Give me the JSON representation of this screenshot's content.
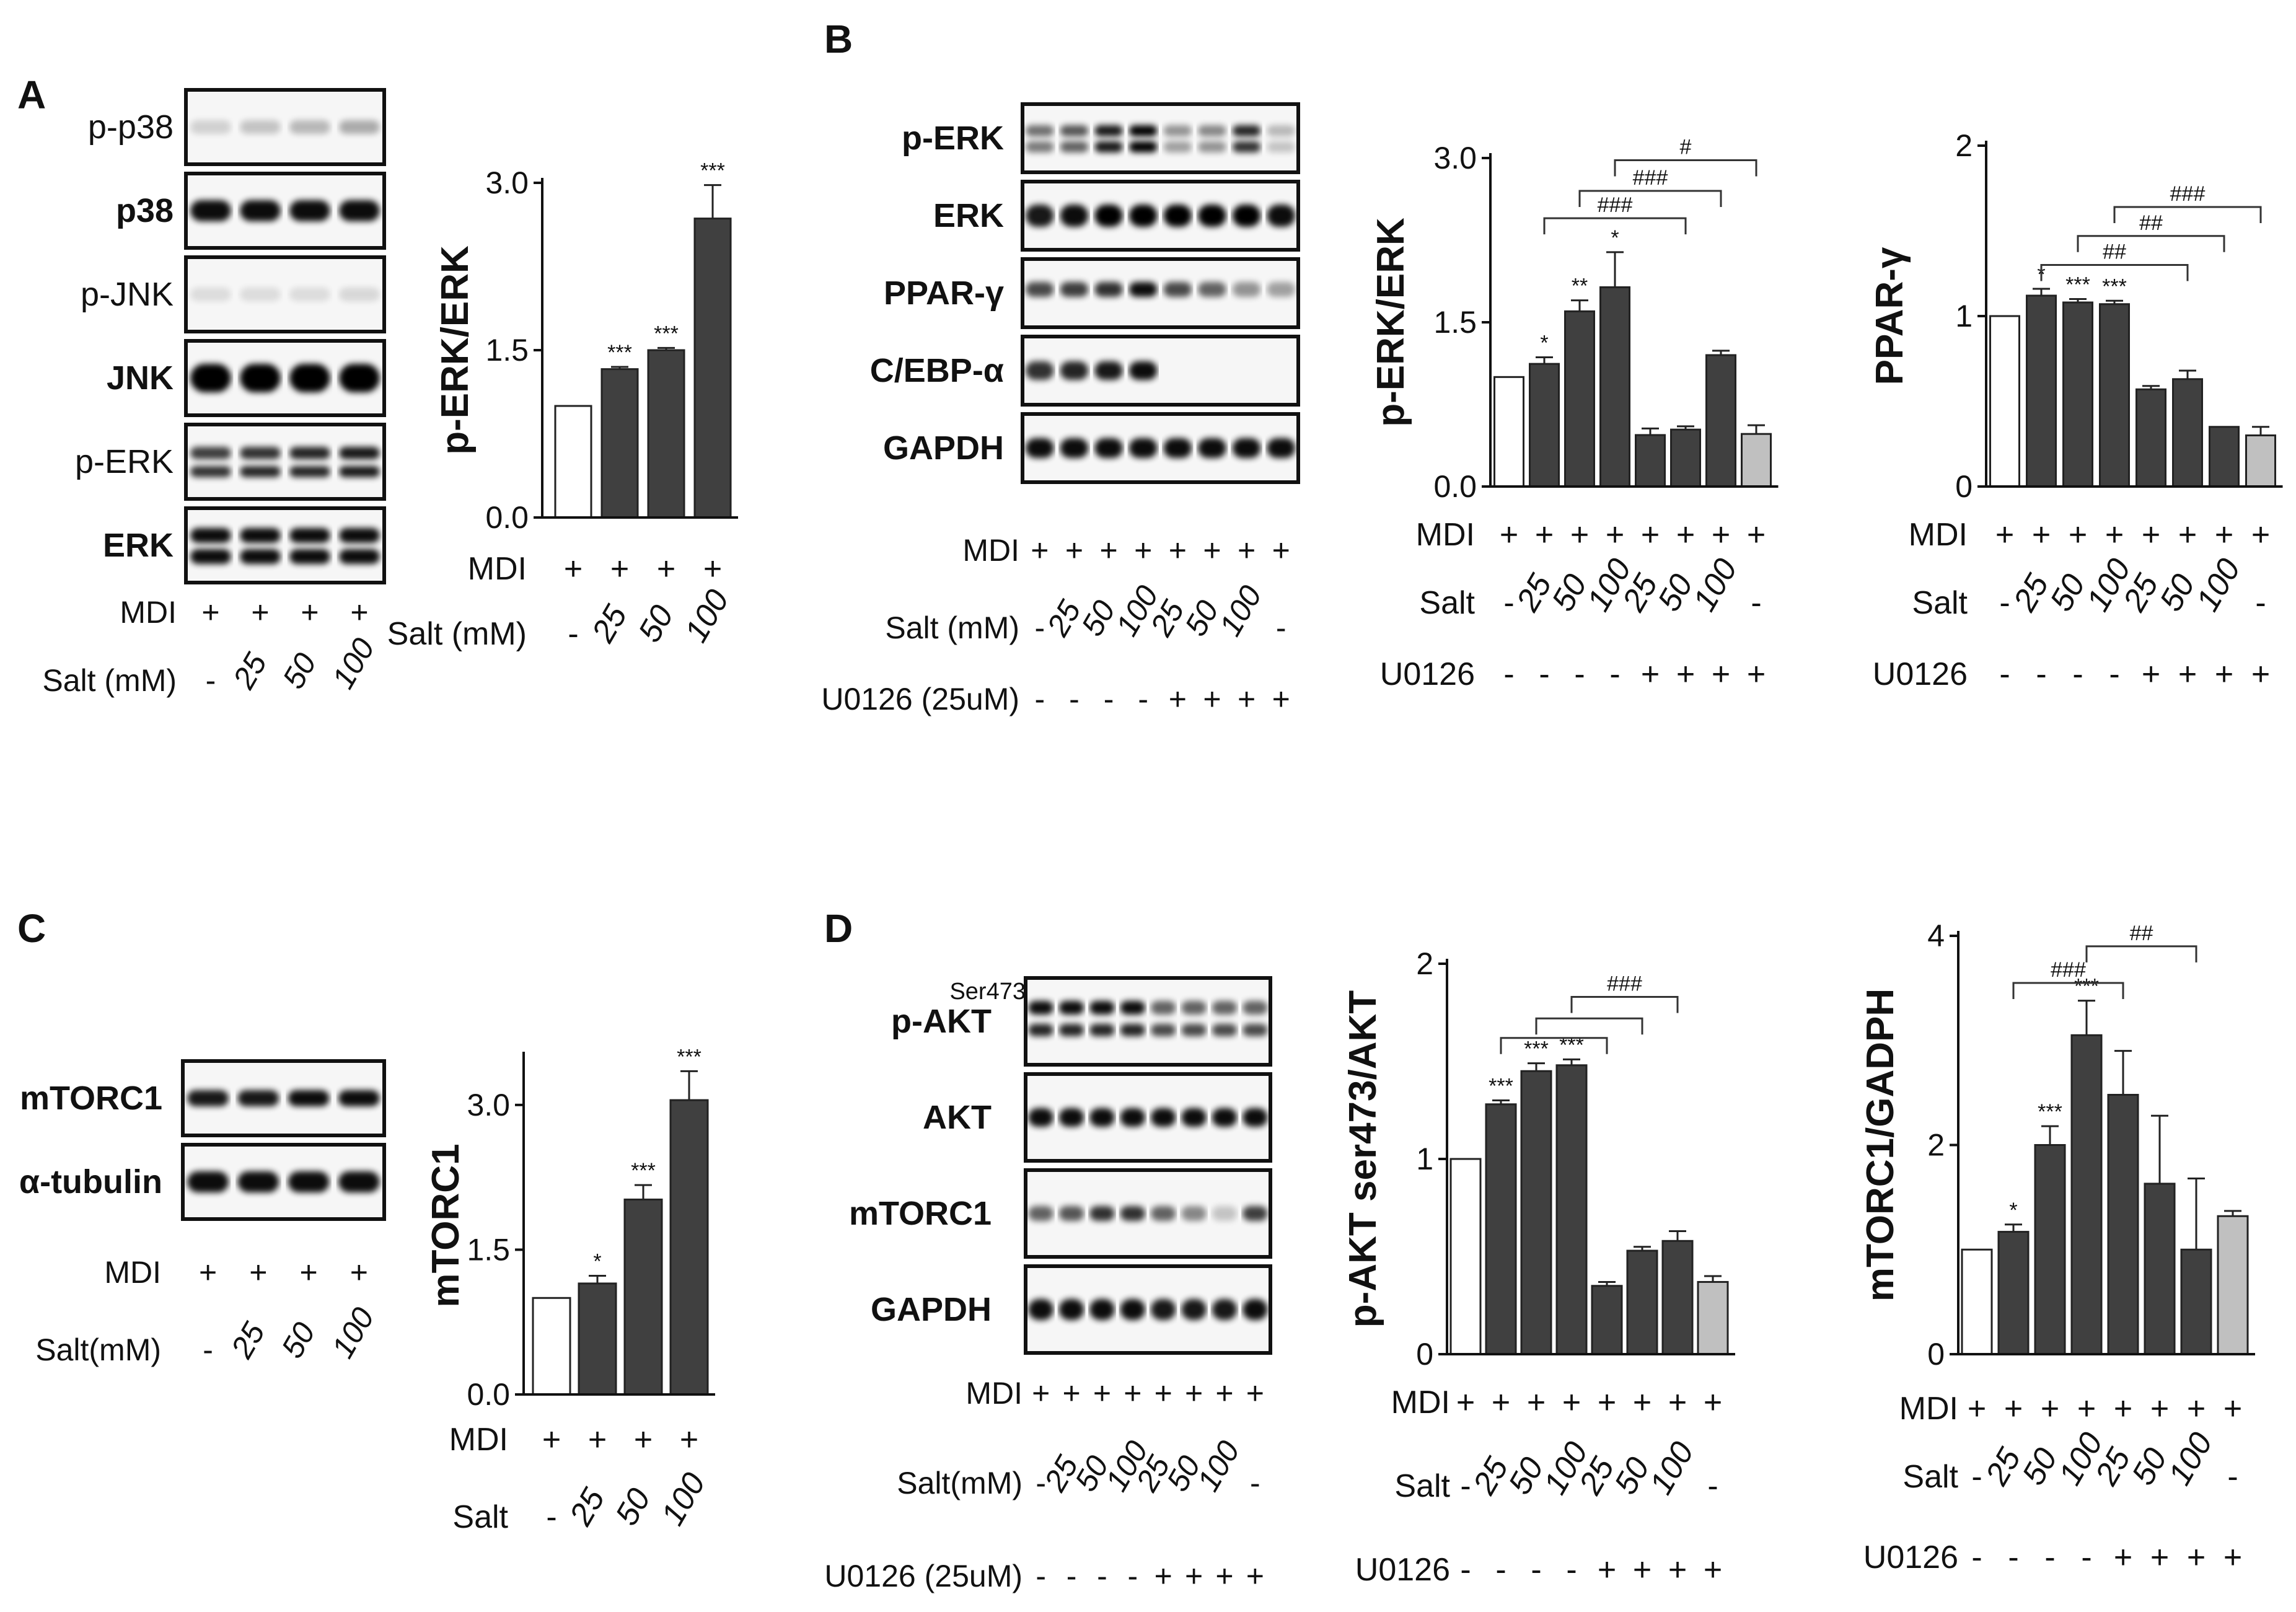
{
  "figure": {
    "panels": [
      "A",
      "B",
      "C",
      "D"
    ],
    "blots": {
      "A": [
        "p-p38",
        "p38",
        "p-JNK",
        "JNK",
        "p-ERK",
        "ERK"
      ],
      "B": [
        "p-ERK",
        "ERK",
        "PPAR-γ",
        "C/EBP-α",
        "GAPDH"
      ],
      "C": [
        "mTORC1",
        "α-tubulin"
      ],
      "D": [
        "p-AKT",
        "AKT",
        "mTORC1",
        "GAPDH"
      ],
      "D_superscript": "Ser473"
    },
    "blot_conditions": {
      "A": [
        {
          "label": "MDI",
          "values": [
            "+",
            "+",
            "+",
            "+"
          ]
        },
        {
          "label": "Salt (mM)",
          "values": [
            "-",
            "25",
            "50",
            "100"
          ]
        }
      ],
      "B": [
        {
          "label": "MDI",
          "values": [
            "+",
            "+",
            "+",
            "+",
            "+",
            "+",
            "+",
            "+"
          ]
        },
        {
          "label": "Salt (mM)",
          "values": [
            "-",
            "25",
            "50",
            "100",
            "25",
            "50",
            "100",
            "-"
          ]
        },
        {
          "label": "U0126 (25uM)",
          "values": [
            "-",
            "-",
            "-",
            "-",
            "+",
            "+",
            "+",
            "+"
          ]
        }
      ],
      "C": [
        {
          "label": "MDI",
          "values": [
            "+",
            "+",
            "+",
            "+"
          ]
        },
        {
          "label": "Salt(mM)",
          "values": [
            "-",
            "25",
            "50",
            "100"
          ]
        }
      ],
      "D": [
        {
          "label": "MDI",
          "values": [
            "+",
            "+",
            "+",
            "+",
            "+",
            "+",
            "+",
            "+"
          ]
        },
        {
          "label": "Salt(mM)",
          "values": [
            "-",
            "25",
            "50",
            "100",
            "25",
            "50",
            "100",
            "-"
          ]
        },
        {
          "label": "U0126 (25uM)",
          "values": [
            "-",
            "-",
            "-",
            "-",
            "+",
            "+",
            "+",
            "+"
          ]
        }
      ]
    },
    "colors": {
      "control": "#ffffff",
      "treated": "#404040",
      "u0126_only": "#c0c0c0",
      "axis": "#111111"
    }
  },
  "chart_data": [
    {
      "id": "A",
      "type": "bar",
      "ylabel": "p-ERK/ERK",
      "ylim": [
        0,
        3
      ],
      "yticks": [
        "0.0",
        "1.5",
        "3.0"
      ],
      "values": [
        1.0,
        1.33,
        1.5,
        2.68
      ],
      "errors": [
        0,
        0.02,
        0.02,
        0.3
      ],
      "sig": [
        "",
        "***",
        "***",
        "***"
      ],
      "conditions": [
        {
          "label": "MDI",
          "values": [
            "+",
            "+",
            "+",
            "+"
          ]
        },
        {
          "label": "Salt (mM)",
          "values": [
            "-",
            "25",
            "50",
            "100"
          ]
        }
      ],
      "brackets": []
    },
    {
      "id": "B1",
      "type": "bar",
      "ylabel": "p-ERK/ERK",
      "ylim": [
        0,
        3
      ],
      "yticks": [
        "0.0",
        "1.5",
        "3.0"
      ],
      "values": [
        1.0,
        1.12,
        1.6,
        1.82,
        0.47,
        0.52,
        1.2,
        0.48
      ],
      "errors": [
        0,
        0.06,
        0.1,
        0.32,
        0.06,
        0.03,
        0.04,
        0.08
      ],
      "sig": [
        "",
        "*",
        "**",
        "*",
        "",
        "",
        "",
        ""
      ],
      "conditions": [
        {
          "label": "MDI",
          "values": [
            "+",
            "+",
            "+",
            "+",
            "+",
            "+",
            "+",
            "+"
          ]
        },
        {
          "label": "Salt",
          "values": [
            "-",
            "25",
            "50",
            "100",
            "25",
            "50",
            "100",
            "-"
          ]
        },
        {
          "label": "U0126",
          "values": [
            "-",
            "-",
            "-",
            "-",
            "+",
            "+",
            "+",
            "+"
          ]
        }
      ],
      "brackets": [
        {
          "from": 1,
          "to": 5,
          "y": 2.45,
          "label": "###"
        },
        {
          "from": 2,
          "to": 6,
          "y": 2.7,
          "label": "###"
        },
        {
          "from": 3,
          "to": 7,
          "y": 2.98,
          "label": "#"
        }
      ]
    },
    {
      "id": "B2",
      "type": "bar",
      "ylabel": "PPAR-γ",
      "ylim": [
        0,
        2
      ],
      "yticks": [
        "0",
        "1",
        "2"
      ],
      "values": [
        1.0,
        1.12,
        1.08,
        1.07,
        0.57,
        0.63,
        0.35,
        0.3
      ],
      "errors": [
        0,
        0.04,
        0.02,
        0.02,
        0.02,
        0.05,
        0,
        0.05
      ],
      "sig": [
        "",
        "*",
        "***",
        "***",
        "",
        "",
        "",
        ""
      ],
      "conditions": [
        {
          "label": "MDI",
          "values": [
            "+",
            "+",
            "+",
            "+",
            "+",
            "+",
            "+",
            "+"
          ]
        },
        {
          "label": "Salt",
          "values": [
            "-",
            "25",
            "50",
            "100",
            "25",
            "50",
            "100",
            "-"
          ]
        },
        {
          "label": "U0126",
          "values": [
            "-",
            "-",
            "-",
            "-",
            "+",
            "+",
            "+",
            "+"
          ]
        }
      ],
      "brackets": [
        {
          "from": 1,
          "to": 5,
          "y": 1.3,
          "label": "##"
        },
        {
          "from": 2,
          "to": 6,
          "y": 1.47,
          "label": "##"
        },
        {
          "from": 3,
          "to": 7,
          "y": 1.64,
          "label": "###"
        }
      ]
    },
    {
      "id": "C",
      "type": "bar",
      "ylabel": "mTORC1",
      "ylim": [
        0,
        3.5
      ],
      "yticks": [
        "0.0",
        "1.5",
        "3.0"
      ],
      "values": [
        1.0,
        1.15,
        2.02,
        3.05
      ],
      "errors": [
        0,
        0.08,
        0.15,
        0.3
      ],
      "sig": [
        "",
        "*",
        "***",
        "***"
      ],
      "conditions": [
        {
          "label": "MDI",
          "values": [
            "+",
            "+",
            "+",
            "+"
          ]
        },
        {
          "label": "Salt",
          "values": [
            "-",
            "25",
            "50",
            "100"
          ]
        }
      ],
      "brackets": []
    },
    {
      "id": "D1",
      "type": "bar",
      "ylabel": "p-AKT ser473/AKT",
      "ylim": [
        0,
        2
      ],
      "yticks": [
        "0",
        "1",
        "2"
      ],
      "values": [
        1.0,
        1.28,
        1.45,
        1.48,
        0.35,
        0.53,
        0.58,
        0.37
      ],
      "errors": [
        0,
        0.02,
        0.04,
        0.03,
        0.02,
        0.02,
        0.05,
        0.03
      ],
      "sig": [
        "",
        "***",
        "***",
        "***",
        "",
        "",
        "",
        ""
      ],
      "conditions": [
        {
          "label": "MDI",
          "values": [
            "+",
            "+",
            "+",
            "+",
            "+",
            "+",
            "+",
            "+"
          ]
        },
        {
          "label": "Salt",
          "values": [
            "-",
            "25",
            "50",
            "100",
            "25",
            "50",
            "100",
            "-"
          ]
        },
        {
          "label": "U0126",
          "values": [
            "-",
            "-",
            "-",
            "-",
            "+",
            "+",
            "+",
            "+"
          ]
        }
      ],
      "brackets": [
        {
          "from": 1,
          "to": 4,
          "y": 1.62,
          "label": ""
        },
        {
          "from": 2,
          "to": 5,
          "y": 1.72,
          "label": ""
        },
        {
          "from": 3,
          "to": 6,
          "y": 1.83,
          "label": "###"
        }
      ]
    },
    {
      "id": "D2",
      "type": "bar",
      "ylabel": "mTORC1/GADPH",
      "ylim": [
        0,
        4
      ],
      "yticks": [
        "0",
        "2",
        "4"
      ],
      "values": [
        1.0,
        1.17,
        2.0,
        3.05,
        2.48,
        1.63,
        1.0,
        1.32
      ],
      "errors": [
        0,
        0.07,
        0.18,
        0.33,
        0.42,
        0.65,
        0.68,
        0.05
      ],
      "sig": [
        "",
        "*",
        "***",
        "***",
        "",
        "",
        "",
        ""
      ],
      "conditions": [
        {
          "label": "MDI",
          "values": [
            "+",
            "+",
            "+",
            "+",
            "+",
            "+",
            "+",
            "+"
          ]
        },
        {
          "label": "Salt",
          "values": [
            "-",
            "25",
            "50",
            "100",
            "25",
            "50",
            "100",
            "-"
          ]
        },
        {
          "label": "U0126",
          "values": [
            "-",
            "-",
            "-",
            "-",
            "+",
            "+",
            "+",
            "+"
          ]
        }
      ],
      "brackets": [
        {
          "from": 1,
          "to": 4,
          "y": 3.55,
          "label": "###"
        },
        {
          "from": 3,
          "to": 6,
          "y": 3.9,
          "label": "##"
        }
      ]
    }
  ]
}
